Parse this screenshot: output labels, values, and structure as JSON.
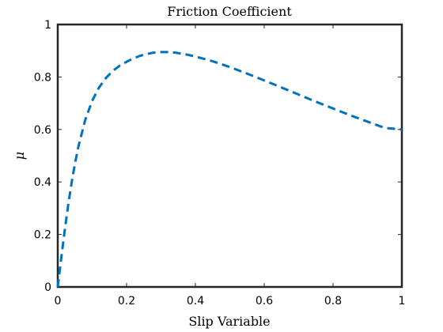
{
  "chart_data": {
    "type": "line",
    "title": "Friction Coefficient",
    "xlabel": "Slip Variable",
    "ylabel": "μ",
    "xlim": [
      0,
      1
    ],
    "ylim": [
      0,
      1
    ],
    "xticks": [
      "0",
      "0.2",
      "0.4",
      "0.6",
      "0.8",
      "1"
    ],
    "yticks": [
      "0",
      "0.2",
      "0.4",
      "0.6",
      "0.8",
      "1"
    ],
    "grid": false,
    "colors": {
      "line": "#0072BD",
      "axes": "#262626"
    },
    "series": [
      {
        "x": [
          0,
          0.01,
          0.02,
          0.03,
          0.04,
          0.05,
          0.06,
          0.08,
          0.1,
          0.12,
          0.14,
          0.16,
          0.18,
          0.2,
          0.22,
          0.24,
          0.26,
          0.28,
          0.3,
          0.32,
          0.34,
          0.36,
          0.38,
          0.4,
          0.45,
          0.5,
          0.55,
          0.6,
          0.65,
          0.7,
          0.75,
          0.8,
          0.85,
          0.9,
          0.95,
          1.0
        ],
        "y": [
          0,
          0.108,
          0.213,
          0.309,
          0.395,
          0.47,
          0.535,
          0.637,
          0.709,
          0.76,
          0.796,
          0.823,
          0.843,
          0.858,
          0.871,
          0.881,
          0.888,
          0.893,
          0.895,
          0.895,
          0.893,
          0.889,
          0.884,
          0.878,
          0.86,
          0.838,
          0.813,
          0.787,
          0.76,
          0.733,
          0.706,
          0.68,
          0.654,
          0.63,
          0.606,
          0.6
        ]
      }
    ]
  }
}
